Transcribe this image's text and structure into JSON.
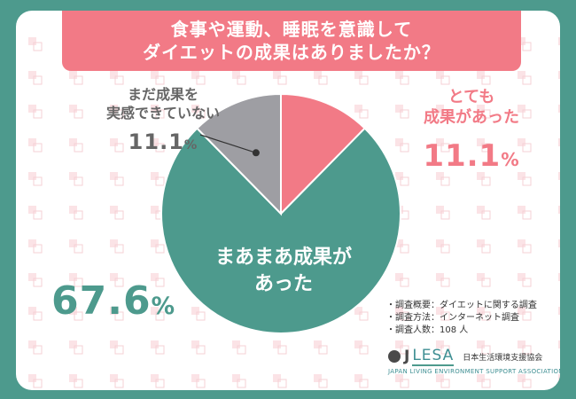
{
  "title": {
    "line1": "食事や運動、睡眠を意識して",
    "line2": "ダイエットの成果はありましたか？"
  },
  "chart_data": {
    "type": "pie",
    "title": "食事や運動、睡眠を意識して ダイエットの成果はありましたか？",
    "categories": [
      "とても成果があった",
      "まあまあ成果があった",
      "まだ成果を実感できていない"
    ],
    "values": [
      11.1,
      67.6,
      11.1
    ],
    "unit": "%",
    "start_angle": "12 o'clock",
    "direction": "clockwise",
    "colors": [
      "#f27a86",
      "#4d9a8d",
      "#9e9ea3"
    ]
  },
  "labels": {
    "very_good": {
      "text_line1": "とても",
      "text_line2": "成果があった",
      "value": "11.1",
      "unit": "%"
    },
    "somewhat": {
      "text_line1": "まあまあ成果が",
      "text_line2": "あった",
      "value": "67.6",
      "unit": "%"
    },
    "not_yet": {
      "text_line1": "まだ成果を",
      "text_line2": "実感できていない",
      "value": "11.1",
      "unit": "%"
    }
  },
  "notes": [
    "・調査概要：ダイエットに関する調査",
    "・調査方法：インターネット調査",
    "・調査人数：108 人"
  ],
  "logo": {
    "mark": "J",
    "name": "LESA",
    "jp": "日本生活環境支援協会",
    "en": "JAPAN LIVING ENVIRONMENT SUPPORT ASSOCIATION"
  },
  "colors": {
    "background": "#4d9a8d",
    "banner": "#f27a86",
    "pink": "#f27a86",
    "teal": "#4d9a8d",
    "gray": "#9e9ea3"
  }
}
